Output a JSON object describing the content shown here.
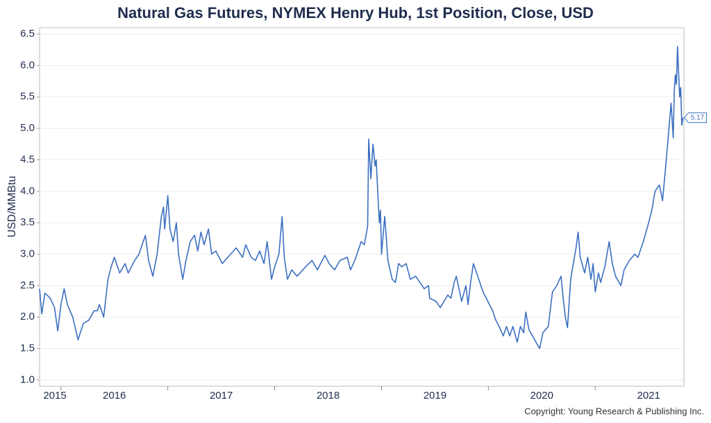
{
  "chart_data": {
    "type": "line",
    "title": "Natural Gas Futures, NYMEX Henry Hub, 1st Position, Close, USD",
    "y_label": "USD/MMBtu",
    "source": "Copyright: Young Research & Publishing Inc.",
    "x": [
      2015.8,
      2015.82,
      2015.85,
      2015.9,
      2015.94,
      2015.97,
      2016.0,
      2016.03,
      2016.06,
      2016.11,
      2016.16,
      2016.21,
      2016.26,
      2016.31,
      2016.34,
      2016.36,
      2016.4,
      2016.44,
      2016.47,
      2016.5,
      2016.55,
      2016.6,
      2016.63,
      2016.69,
      2016.73,
      2016.79,
      2016.82,
      2016.86,
      2016.9,
      2016.94,
      2016.96,
      2016.97,
      2017.0,
      2017.02,
      2017.05,
      2017.08,
      2017.1,
      2017.14,
      2017.17,
      2017.21,
      2017.25,
      2017.28,
      2017.31,
      2017.34,
      2017.38,
      2017.41,
      2017.45,
      2017.51,
      2017.56,
      2017.64,
      2017.7,
      2017.73,
      2017.78,
      2017.82,
      2017.86,
      2017.9,
      2017.93,
      2017.95,
      2017.97,
      2018.0,
      2018.04,
      2018.07,
      2018.09,
      2018.12,
      2018.16,
      2018.21,
      2018.29,
      2018.35,
      2018.4,
      2018.47,
      2018.51,
      2018.56,
      2018.61,
      2018.68,
      2018.71,
      2018.75,
      2018.81,
      2018.84,
      2018.87,
      2018.88,
      2018.9,
      2018.92,
      2018.94,
      2018.95,
      2018.97,
      2018.98,
      2018.99,
      2019.0,
      2019.03,
      2019.06,
      2019.1,
      2019.13,
      2019.16,
      2019.19,
      2019.23,
      2019.27,
      2019.32,
      2019.36,
      2019.4,
      2019.44,
      2019.45,
      2019.51,
      2019.55,
      2019.62,
      2019.65,
      2019.68,
      2019.7,
      2019.75,
      2019.79,
      2019.81,
      2019.83,
      2019.86,
      2019.91,
      2019.95,
      2020.01,
      2020.04,
      2020.07,
      2020.1,
      2020.14,
      2020.17,
      2020.2,
      2020.23,
      2020.27,
      2020.3,
      2020.33,
      2020.35,
      2020.38,
      2020.43,
      2020.48,
      2020.51,
      2020.56,
      2020.6,
      2020.64,
      2020.68,
      2020.7,
      2020.72,
      2020.74,
      2020.77,
      2020.79,
      2020.82,
      2020.84,
      2020.86,
      2020.9,
      2020.93,
      2020.96,
      2020.98,
      2021.0,
      2021.03,
      2021.05,
      2021.09,
      2021.13,
      2021.16,
      2021.19,
      2021.24,
      2021.27,
      2021.32,
      2021.37,
      2021.4,
      2021.45,
      2021.5,
      2021.53,
      2021.56,
      2021.6,
      2021.63,
      2021.66,
      2021.68,
      2021.71,
      2021.73,
      2021.74,
      2021.75,
      2021.76,
      2021.77,
      2021.79,
      2021.8,
      2021.81,
      2021.82
    ],
    "series": [
      {
        "name": "Close",
        "color": "#3a6fc0",
        "values": [
          2.45,
          2.05,
          2.38,
          2.3,
          2.15,
          1.78,
          2.2,
          2.45,
          2.2,
          2.0,
          1.64,
          1.9,
          1.95,
          2.1,
          2.1,
          2.2,
          2.0,
          2.6,
          2.8,
          2.95,
          2.7,
          2.85,
          2.7,
          2.9,
          3.0,
          3.3,
          2.9,
          2.65,
          3.0,
          3.6,
          3.75,
          3.4,
          3.93,
          3.4,
          3.2,
          3.5,
          3.0,
          2.6,
          2.9,
          3.2,
          3.3,
          3.05,
          3.35,
          3.15,
          3.4,
          3.0,
          3.05,
          2.85,
          2.95,
          3.1,
          2.95,
          3.15,
          2.95,
          2.9,
          3.05,
          2.85,
          3.2,
          2.9,
          2.6,
          2.8,
          3.0,
          3.6,
          2.95,
          2.6,
          2.75,
          2.65,
          2.8,
          2.9,
          2.75,
          2.98,
          2.85,
          2.75,
          2.9,
          2.95,
          2.75,
          2.9,
          3.2,
          3.15,
          3.45,
          4.83,
          4.2,
          4.75,
          4.4,
          4.5,
          3.8,
          3.5,
          3.7,
          3.0,
          3.6,
          2.9,
          2.6,
          2.55,
          2.85,
          2.8,
          2.85,
          2.6,
          2.65,
          2.55,
          2.45,
          2.5,
          2.3,
          2.25,
          2.15,
          2.35,
          2.3,
          2.55,
          2.65,
          2.25,
          2.5,
          2.2,
          2.5,
          2.85,
          2.6,
          2.4,
          2.2,
          2.1,
          1.95,
          1.85,
          1.7,
          1.85,
          1.7,
          1.85,
          1.6,
          1.85,
          1.75,
          2.08,
          1.8,
          1.65,
          1.5,
          1.75,
          1.85,
          2.4,
          2.5,
          2.65,
          2.3,
          2.0,
          1.83,
          2.6,
          2.8,
          3.1,
          3.35,
          2.95,
          2.7,
          2.95,
          2.6,
          2.85,
          2.4,
          2.7,
          2.55,
          2.8,
          3.2,
          2.85,
          2.65,
          2.5,
          2.75,
          2.9,
          3.0,
          2.95,
          3.2,
          3.5,
          3.7,
          4.0,
          4.1,
          3.85,
          4.4,
          4.8,
          5.4,
          4.85,
          5.6,
          5.85,
          5.7,
          6.3,
          5.5,
          5.65,
          5.05,
          5.17
        ]
      }
    ],
    "xlim": [
      2015.8,
      2021.83
    ],
    "xticks": [
      {
        "value": 2015,
        "label": "2015"
      },
      2016,
      2017,
      2018,
      2019,
      2020,
      2021
    ],
    "ylim": [
      0.9,
      6.6
    ],
    "yticks": [
      {
        "value": 1,
        "label": "1.0"
      },
      1.5,
      {
        "value": 2,
        "label": "2.0"
      },
      2.5,
      {
        "value": 3,
        "label": "3.0"
      },
      3.5,
      {
        "value": 4,
        "label": "4.0"
      },
      4.5,
      {
        "value": 5,
        "label": "5.0"
      },
      5.5,
      {
        "value": 6,
        "label": "6.0"
      },
      6.5
    ],
    "grid": true
  }
}
